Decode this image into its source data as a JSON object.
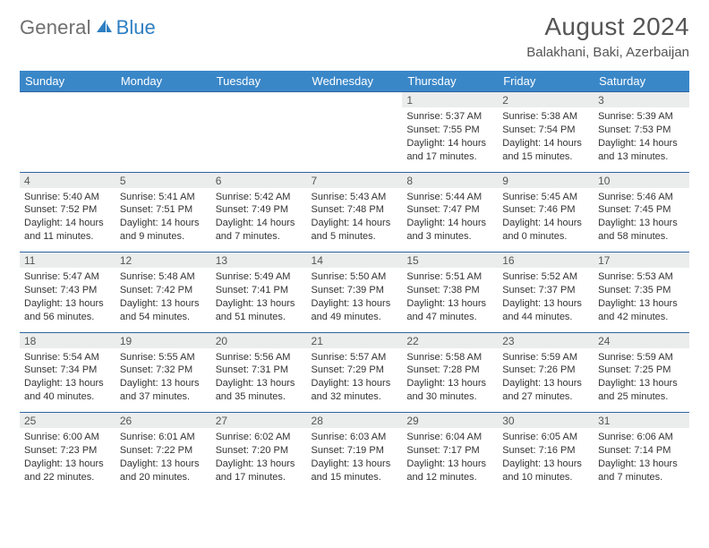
{
  "brand": {
    "word1": "General",
    "word2": "Blue"
  },
  "title": "August 2024",
  "location": "Balakhani, Baki, Azerbaijan",
  "colors": {
    "header_bg": "#3a87c8",
    "header_text": "#ffffff",
    "rule": "#2d63a3",
    "daynum_bg": "#ebecec",
    "text": "#333333",
    "title_text": "#555555",
    "logo_gray": "#6f6f6f",
    "logo_blue": "#2f7fc2"
  },
  "dayNames": [
    "Sunday",
    "Monday",
    "Tuesday",
    "Wednesday",
    "Thursday",
    "Friday",
    "Saturday"
  ],
  "weeks": [
    [
      null,
      null,
      null,
      null,
      {
        "n": "1",
        "sr": "5:37 AM",
        "ss": "7:55 PM",
        "dl": "14 hours and 17 minutes."
      },
      {
        "n": "2",
        "sr": "5:38 AM",
        "ss": "7:54 PM",
        "dl": "14 hours and 15 minutes."
      },
      {
        "n": "3",
        "sr": "5:39 AM",
        "ss": "7:53 PM",
        "dl": "14 hours and 13 minutes."
      }
    ],
    [
      {
        "n": "4",
        "sr": "5:40 AM",
        "ss": "7:52 PM",
        "dl": "14 hours and 11 minutes."
      },
      {
        "n": "5",
        "sr": "5:41 AM",
        "ss": "7:51 PM",
        "dl": "14 hours and 9 minutes."
      },
      {
        "n": "6",
        "sr": "5:42 AM",
        "ss": "7:49 PM",
        "dl": "14 hours and 7 minutes."
      },
      {
        "n": "7",
        "sr": "5:43 AM",
        "ss": "7:48 PM",
        "dl": "14 hours and 5 minutes."
      },
      {
        "n": "8",
        "sr": "5:44 AM",
        "ss": "7:47 PM",
        "dl": "14 hours and 3 minutes."
      },
      {
        "n": "9",
        "sr": "5:45 AM",
        "ss": "7:46 PM",
        "dl": "14 hours and 0 minutes."
      },
      {
        "n": "10",
        "sr": "5:46 AM",
        "ss": "7:45 PM",
        "dl": "13 hours and 58 minutes."
      }
    ],
    [
      {
        "n": "11",
        "sr": "5:47 AM",
        "ss": "7:43 PM",
        "dl": "13 hours and 56 minutes."
      },
      {
        "n": "12",
        "sr": "5:48 AM",
        "ss": "7:42 PM",
        "dl": "13 hours and 54 minutes."
      },
      {
        "n": "13",
        "sr": "5:49 AM",
        "ss": "7:41 PM",
        "dl": "13 hours and 51 minutes."
      },
      {
        "n": "14",
        "sr": "5:50 AM",
        "ss": "7:39 PM",
        "dl": "13 hours and 49 minutes."
      },
      {
        "n": "15",
        "sr": "5:51 AM",
        "ss": "7:38 PM",
        "dl": "13 hours and 47 minutes."
      },
      {
        "n": "16",
        "sr": "5:52 AM",
        "ss": "7:37 PM",
        "dl": "13 hours and 44 minutes."
      },
      {
        "n": "17",
        "sr": "5:53 AM",
        "ss": "7:35 PM",
        "dl": "13 hours and 42 minutes."
      }
    ],
    [
      {
        "n": "18",
        "sr": "5:54 AM",
        "ss": "7:34 PM",
        "dl": "13 hours and 40 minutes."
      },
      {
        "n": "19",
        "sr": "5:55 AM",
        "ss": "7:32 PM",
        "dl": "13 hours and 37 minutes."
      },
      {
        "n": "20",
        "sr": "5:56 AM",
        "ss": "7:31 PM",
        "dl": "13 hours and 35 minutes."
      },
      {
        "n": "21",
        "sr": "5:57 AM",
        "ss": "7:29 PM",
        "dl": "13 hours and 32 minutes."
      },
      {
        "n": "22",
        "sr": "5:58 AM",
        "ss": "7:28 PM",
        "dl": "13 hours and 30 minutes."
      },
      {
        "n": "23",
        "sr": "5:59 AM",
        "ss": "7:26 PM",
        "dl": "13 hours and 27 minutes."
      },
      {
        "n": "24",
        "sr": "5:59 AM",
        "ss": "7:25 PM",
        "dl": "13 hours and 25 minutes."
      }
    ],
    [
      {
        "n": "25",
        "sr": "6:00 AM",
        "ss": "7:23 PM",
        "dl": "13 hours and 22 minutes."
      },
      {
        "n": "26",
        "sr": "6:01 AM",
        "ss": "7:22 PM",
        "dl": "13 hours and 20 minutes."
      },
      {
        "n": "27",
        "sr": "6:02 AM",
        "ss": "7:20 PM",
        "dl": "13 hours and 17 minutes."
      },
      {
        "n": "28",
        "sr": "6:03 AM",
        "ss": "7:19 PM",
        "dl": "13 hours and 15 minutes."
      },
      {
        "n": "29",
        "sr": "6:04 AM",
        "ss": "7:17 PM",
        "dl": "13 hours and 12 minutes."
      },
      {
        "n": "30",
        "sr": "6:05 AM",
        "ss": "7:16 PM",
        "dl": "13 hours and 10 minutes."
      },
      {
        "n": "31",
        "sr": "6:06 AM",
        "ss": "7:14 PM",
        "dl": "13 hours and 7 minutes."
      }
    ]
  ],
  "labels": {
    "sunrise": "Sunrise:",
    "sunset": "Sunset:",
    "daylight": "Daylight:"
  }
}
